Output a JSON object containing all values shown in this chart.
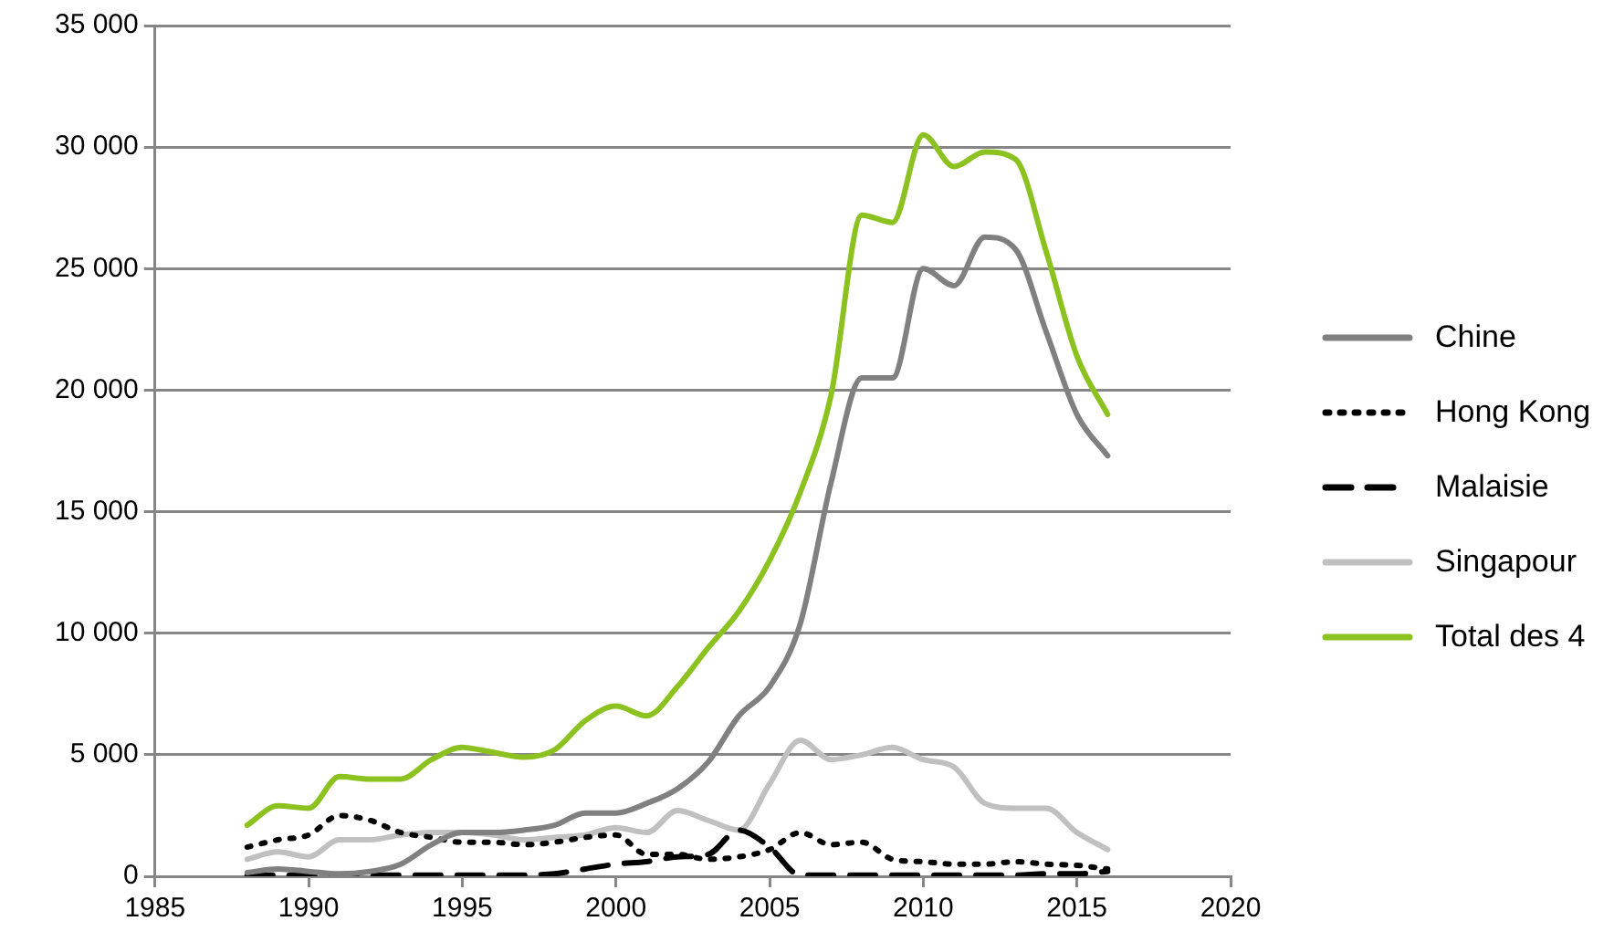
{
  "chart_data": {
    "type": "line",
    "x": [
      1988,
      1989,
      1990,
      1991,
      1992,
      1993,
      1994,
      1995,
      1996,
      1997,
      1998,
      1999,
      2000,
      2001,
      2002,
      2003,
      2004,
      2005,
      2006,
      2007,
      2008,
      2009,
      2010,
      2011,
      2012,
      2013,
      2014,
      2015,
      2016
    ],
    "series": [
      {
        "name": "Chine",
        "color": "#808080",
        "line_style": "solid",
        "values": [
          150,
          300,
          200,
          100,
          200,
          500,
          1300,
          1800,
          1800,
          1900,
          2100,
          2600,
          2600,
          3000,
          3600,
          4700,
          6600,
          7800,
          10400,
          16200,
          20500,
          20500,
          25000,
          24300,
          26300,
          25800,
          22400,
          19000,
          17300
        ]
      },
      {
        "name": "Hong Kong",
        "color": "#000000",
        "line_style": "dotted",
        "values": [
          1200,
          1500,
          1700,
          2500,
          2300,
          1800,
          1600,
          1400,
          1400,
          1300,
          1400,
          1600,
          1700,
          900,
          900,
          700,
          800,
          1100,
          1800,
          1300,
          1400,
          700,
          600,
          500,
          500,
          600,
          500,
          450,
          300
        ]
      },
      {
        "name": "Malaisie",
        "color": "#000000",
        "line_style": "dashed",
        "values": [
          50,
          50,
          50,
          50,
          50,
          50,
          50,
          50,
          50,
          50,
          100,
          300,
          500,
          600,
          800,
          900,
          1900,
          1200,
          50,
          50,
          50,
          50,
          50,
          50,
          50,
          50,
          100,
          100,
          200
        ]
      },
      {
        "name": "Singapour",
        "color": "#c0c0c0",
        "line_style": "solid",
        "values": [
          700,
          1000,
          800,
          1500,
          1500,
          1700,
          1800,
          1800,
          1700,
          1500,
          1600,
          1700,
          2000,
          1800,
          2700,
          2300,
          1900,
          3800,
          5600,
          4800,
          5000,
          5300,
          4800,
          4500,
          3000,
          2800,
          2800,
          1800,
          1100
        ]
      },
      {
        "name": "Total des 4",
        "color": "#8cc21f",
        "line_style": "solid",
        "values": [
          2100,
          2900,
          2800,
          4100,
          4000,
          4000,
          4800,
          5300,
          5100,
          4900,
          5200,
          6400,
          7000,
          6600,
          7800,
          9400,
          10900,
          13000,
          15800,
          19800,
          27200,
          26900,
          30500,
          29200,
          29800,
          29500,
          25700,
          21400,
          19000
        ]
      }
    ],
    "xlim": [
      1985,
      2020
    ],
    "xticks": [
      1985,
      1990,
      1995,
      2000,
      2005,
      2010,
      2015,
      2020
    ],
    "ylim": [
      0,
      35000
    ],
    "yticks": [
      0,
      {
        "value": 5000,
        "label": "5 000"
      },
      {
        "value": 10000,
        "label": "10 000"
      },
      {
        "value": 15000,
        "label": "15 000"
      },
      {
        "value": 20000,
        "label": "20 000"
      },
      {
        "value": 25000,
        "label": "25 000"
      },
      {
        "value": 30000,
        "label": "30 000"
      },
      {
        "value": 35000,
        "label": "35 000"
      }
    ],
    "grid": "y",
    "legend": "right",
    "marker": "none"
  }
}
